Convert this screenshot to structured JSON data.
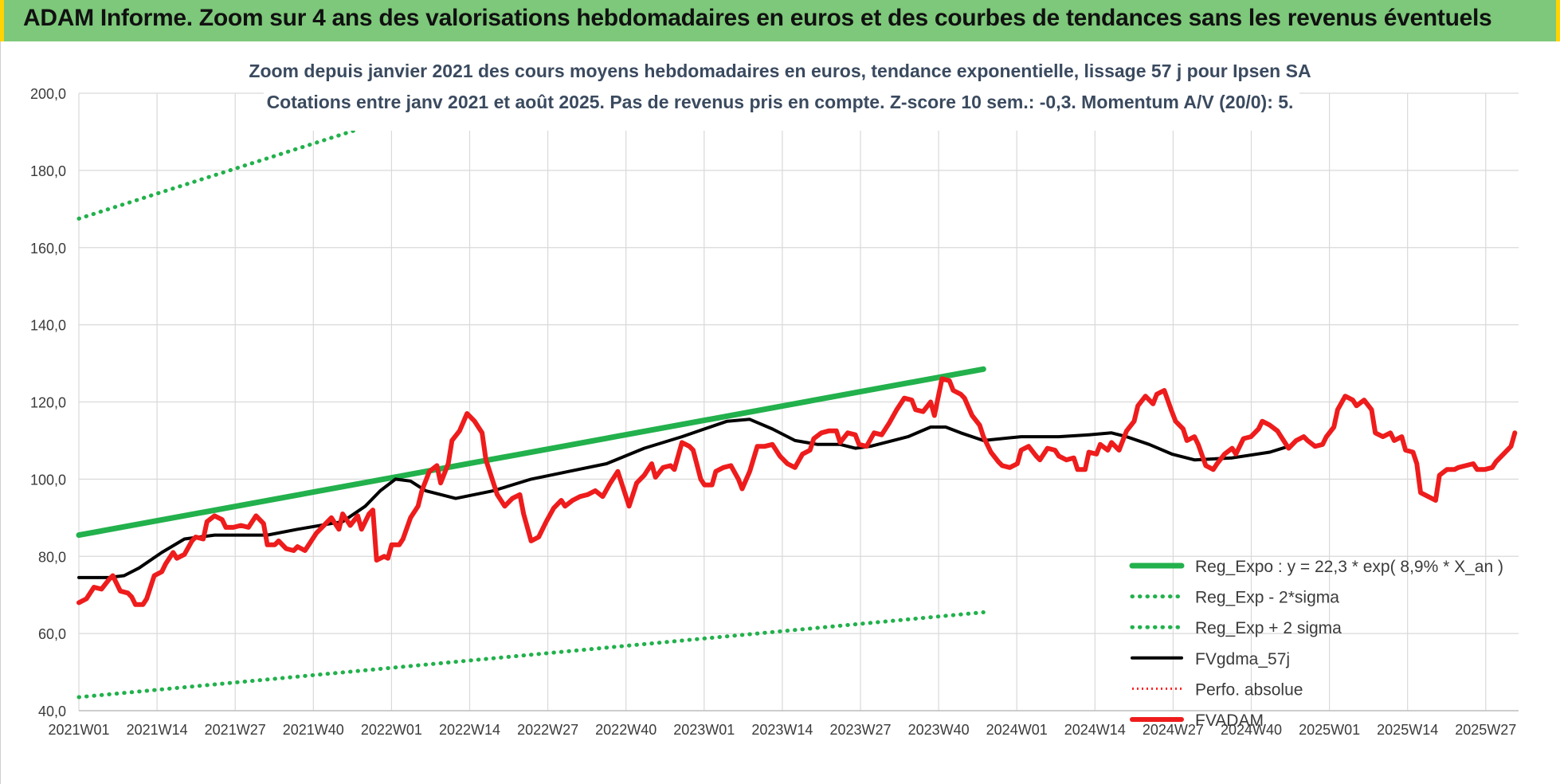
{
  "header": {
    "title": "ADAM Informe. Zoom sur 4 ans des valorisations hebdomadaires en euros et des courbes de tendances sans les revenus éventuels"
  },
  "colors": {
    "banner": "#7dc87a",
    "trend": "#22b14c",
    "band": "#22b14c",
    "smoothed": "#000000",
    "perf": "#ff2020",
    "price": "#ee1c1c"
  },
  "chart_data": {
    "type": "line",
    "title": "Zoom depuis janvier 2021 des cours moyens hebdomadaires en euros, tendance exponentielle, lissage 57 j pour Ipsen SA",
    "subtitle": "Cotations entre janv 2021 et août 2025.  Pas de revenus pris en compte. Z-score 10 sem.: -0,3. Momentum A/V (20/0): 5.",
    "xlabel": "",
    "ylabel": "",
    "ylim": [
      40,
      200
    ],
    "y_ticks": [
      "40,0",
      "60,0",
      "80,0",
      "100,0",
      "120,0",
      "140,0",
      "160,0",
      "180,0",
      "200,0"
    ],
    "x_tick_labels": [
      "2021W01",
      "2021W14",
      "2021W27",
      "2021W40",
      "2022W01",
      "2022W14",
      "2022W27",
      "2022W40",
      "2023W01",
      "2023W14",
      "2023W27",
      "2023W40",
      "2024W01",
      "2024W14",
      "2024W27",
      "2024W40",
      "2025W01",
      "2025W14",
      "2025W27"
    ],
    "grid": true,
    "legend_position": "bottom-right",
    "series": [
      {
        "name": "Reg_Expo : y = 22,3 * exp( 8,9% *  X_an )",
        "style": "solid-thick",
        "points": [
          [
            0,
            85.5
          ],
          [
            240,
            128.5
          ]
        ]
      },
      {
        "name": "Reg_Exp - 2*sigma",
        "style": "dotted",
        "points": [
          [
            0,
            43.5
          ],
          [
            240,
            65.5
          ]
        ]
      },
      {
        "name": "Reg_Exp + 2 sigma",
        "style": "dotted",
        "points": [
          [
            0,
            167.5
          ],
          [
            80,
            192.5
          ],
          [
            191,
            200
          ],
          [
            240,
            200
          ]
        ]
      },
      {
        "name": "FVgdma_57j",
        "style": "solid",
        "points": [
          [
            0,
            74.5
          ],
          [
            8,
            74.5
          ],
          [
            12,
            75
          ],
          [
            16,
            77
          ],
          [
            22,
            81
          ],
          [
            28,
            84.5
          ],
          [
            36,
            85.5
          ],
          [
            50,
            85.5
          ],
          [
            58,
            87
          ],
          [
            70,
            89
          ],
          [
            76,
            93
          ],
          [
            80,
            97
          ],
          [
            84,
            100
          ],
          [
            88,
            99.5
          ],
          [
            92,
            97
          ],
          [
            100,
            95
          ],
          [
            110,
            97
          ],
          [
            120,
            100
          ],
          [
            130,
            102
          ],
          [
            140,
            104
          ],
          [
            150,
            108
          ],
          [
            160,
            111
          ],
          [
            166,
            113
          ],
          [
            172,
            115
          ],
          [
            178,
            115.5
          ],
          [
            184,
            113
          ],
          [
            190,
            110
          ],
          [
            196,
            109
          ],
          [
            202,
            109
          ],
          [
            206,
            108
          ],
          [
            210,
            108.5
          ],
          [
            216,
            110
          ],
          [
            220,
            111
          ],
          [
            226,
            113.5
          ],
          [
            230,
            113.5
          ],
          [
            234,
            112
          ],
          [
            240,
            110
          ],
          [
            250,
            111
          ],
          [
            260,
            111
          ],
          [
            268,
            111.5
          ],
          [
            274,
            112
          ],
          [
            278,
            111
          ],
          [
            284,
            109
          ],
          [
            290,
            106.5
          ],
          [
            296,
            105
          ],
          [
            306,
            105.5
          ],
          [
            316,
            107
          ],
          [
            321,
            108.5
          ]
        ]
      },
      {
        "name": "Perfo. absolue",
        "style": "dotted-red",
        "points": []
      },
      {
        "name": "FVADAM",
        "style": "solid-thick",
        "points": [
          [
            0,
            68
          ],
          [
            2,
            69
          ],
          [
            4,
            72
          ],
          [
            6,
            71.5
          ],
          [
            8,
            74
          ],
          [
            9,
            75
          ],
          [
            10,
            73
          ],
          [
            11,
            71
          ],
          [
            13,
            70.5
          ],
          [
            14,
            69.5
          ],
          [
            15,
            67.5
          ],
          [
            17,
            67.5
          ],
          [
            18,
            69
          ],
          [
            20,
            75
          ],
          [
            22,
            76
          ],
          [
            23,
            78
          ],
          [
            25,
            81
          ],
          [
            26,
            79.5
          ],
          [
            28,
            80.5
          ],
          [
            30,
            84
          ],
          [
            31,
            85
          ],
          [
            33,
            84.5
          ],
          [
            34,
            89
          ],
          [
            36,
            90.5
          ],
          [
            38,
            89.5
          ],
          [
            39,
            87.5
          ],
          [
            41,
            87.5
          ],
          [
            43,
            88
          ],
          [
            45,
            87.5
          ],
          [
            47,
            90.5
          ],
          [
            49,
            88.5
          ],
          [
            50,
            83
          ],
          [
            52,
            83
          ],
          [
            53,
            84
          ],
          [
            55,
            82
          ],
          [
            57,
            81.5
          ],
          [
            58,
            82.5
          ],
          [
            60,
            81.5
          ],
          [
            61,
            83
          ],
          [
            63,
            86
          ],
          [
            65,
            88
          ],
          [
            67,
            90
          ],
          [
            69,
            87
          ],
          [
            70,
            91
          ],
          [
            72,
            88
          ],
          [
            74,
            90.5
          ],
          [
            75,
            87
          ],
          [
            77,
            91
          ],
          [
            78,
            92
          ],
          [
            79,
            79
          ],
          [
            81,
            80
          ],
          [
            82,
            79.5
          ],
          [
            83,
            83
          ],
          [
            85,
            83
          ],
          [
            86,
            84.5
          ],
          [
            88,
            90
          ],
          [
            90,
            93
          ],
          [
            91,
            97
          ],
          [
            93,
            102
          ],
          [
            95,
            103.5
          ],
          [
            96,
            99
          ],
          [
            98,
            104
          ],
          [
            99,
            110
          ],
          [
            101,
            112.5
          ],
          [
            103,
            117
          ],
          [
            105,
            115
          ],
          [
            107,
            112
          ],
          [
            108,
            105
          ],
          [
            110,
            99
          ],
          [
            111,
            96
          ],
          [
            113,
            93
          ],
          [
            115,
            95
          ],
          [
            117,
            96
          ],
          [
            118,
            91
          ],
          [
            120,
            84
          ],
          [
            122,
            85
          ],
          [
            124,
            89
          ],
          [
            126,
            92.5
          ],
          [
            128,
            94.5
          ],
          [
            129,
            93
          ],
          [
            131,
            94.5
          ],
          [
            133,
            95.5
          ],
          [
            135,
            96
          ],
          [
            137,
            97
          ],
          [
            139,
            95.5
          ],
          [
            141,
            99
          ],
          [
            143,
            102
          ],
          [
            145,
            96
          ],
          [
            146,
            93
          ],
          [
            148,
            99
          ],
          [
            150,
            101
          ],
          [
            152,
            104
          ],
          [
            153,
            100.5
          ],
          [
            155,
            103
          ],
          [
            157,
            103.5
          ],
          [
            158,
            102.5
          ],
          [
            160,
            109.5
          ],
          [
            162,
            108.5
          ],
          [
            163,
            107.5
          ],
          [
            165,
            100
          ],
          [
            166,
            98.5
          ],
          [
            168,
            98.5
          ],
          [
            169,
            102
          ],
          [
            171,
            103
          ],
          [
            173,
            103.5
          ],
          [
            175,
            100
          ],
          [
            176,
            97.5
          ],
          [
            178,
            102
          ],
          [
            180,
            108.5
          ],
          [
            182,
            108.5
          ],
          [
            184,
            109
          ],
          [
            186,
            106
          ],
          [
            188,
            104
          ],
          [
            190,
            103
          ],
          [
            192,
            106.5
          ],
          [
            194,
            107.5
          ],
          [
            195,
            110.5
          ],
          [
            197,
            112
          ],
          [
            199,
            112.5
          ],
          [
            201,
            112.5
          ],
          [
            202,
            109.5
          ],
          [
            204,
            112
          ],
          [
            206,
            111.5
          ],
          [
            207,
            109
          ],
          [
            209,
            108.5
          ],
          [
            211,
            112
          ],
          [
            213,
            111.5
          ],
          [
            215,
            114.5
          ],
          [
            217,
            118
          ],
          [
            219,
            121
          ],
          [
            221,
            120.5
          ],
          [
            222,
            118
          ],
          [
            224,
            117.5
          ],
          [
            226,
            120
          ],
          [
            227,
            116.5
          ],
          [
            229,
            126
          ],
          [
            231,
            125.5
          ],
          [
            232,
            123
          ],
          [
            234,
            122
          ],
          [
            235,
            121
          ],
          [
            237,
            116.5
          ],
          [
            239,
            114
          ],
          [
            240,
            111
          ],
          [
            242,
            107
          ],
          [
            244,
            104.5
          ],
          [
            245,
            103.5
          ],
          [
            247,
            103
          ],
          [
            249,
            104
          ],
          [
            250,
            107.5
          ],
          [
            252,
            108.5
          ],
          [
            254,
            106
          ],
          [
            255,
            105
          ],
          [
            257,
            108
          ],
          [
            259,
            107.5
          ],
          [
            260,
            106
          ],
          [
            262,
            105
          ],
          [
            264,
            105.5
          ],
          [
            265,
            102.5
          ],
          [
            267,
            102.5
          ],
          [
            268,
            107
          ],
          [
            270,
            106.5
          ],
          [
            271,
            109
          ],
          [
            273,
            107.5
          ],
          [
            274,
            109.5
          ],
          [
            276,
            107.5
          ],
          [
            278,
            112.5
          ],
          [
            280,
            115
          ],
          [
            281,
            119
          ],
          [
            283,
            121.5
          ],
          [
            285,
            119.5
          ],
          [
            286,
            122
          ],
          [
            288,
            123
          ],
          [
            290,
            117.5
          ],
          [
            291,
            115
          ],
          [
            293,
            113
          ],
          [
            294,
            110
          ],
          [
            296,
            111
          ],
          [
            297,
            109
          ],
          [
            299,
            103.5
          ],
          [
            301,
            102.5
          ],
          [
            302,
            104
          ],
          [
            304,
            106.5
          ],
          [
            306,
            108
          ],
          [
            307,
            106.5
          ],
          [
            309,
            110.5
          ],
          [
            311,
            111
          ],
          [
            313,
            113
          ],
          [
            314,
            115
          ],
          [
            316,
            114
          ],
          [
            318,
            112.5
          ],
          [
            319,
            111
          ],
          [
            321,
            108
          ],
          [
            323,
            110
          ],
          [
            325,
            111
          ],
          [
            326,
            110
          ],
          [
            328,
            108.5
          ],
          [
            330,
            109
          ],
          [
            331,
            111
          ],
          [
            333,
            113.5
          ],
          [
            334,
            118
          ],
          [
            336,
            121.5
          ],
          [
            338,
            120.5
          ],
          [
            339,
            119
          ],
          [
            341,
            120.5
          ],
          [
            343,
            118
          ],
          [
            344,
            112
          ],
          [
            346,
            111
          ],
          [
            348,
            112
          ],
          [
            349,
            110
          ],
          [
            351,
            111
          ],
          [
            352,
            107.5
          ],
          [
            354,
            107
          ],
          [
            355,
            104
          ],
          [
            356,
            96.5
          ],
          [
            358,
            95.5
          ],
          [
            360,
            94.5
          ],
          [
            361,
            101
          ],
          [
            363,
            102.5
          ],
          [
            365,
            102.5
          ],
          [
            366,
            103
          ],
          [
            368,
            103.5
          ],
          [
            370,
            104
          ],
          [
            371,
            102.5
          ],
          [
            373,
            102.5
          ],
          [
            375,
            103
          ],
          [
            376,
            104.5
          ],
          [
            378,
            106.5
          ],
          [
            380,
            108.5
          ],
          [
            381,
            112
          ]
        ]
      }
    ]
  }
}
